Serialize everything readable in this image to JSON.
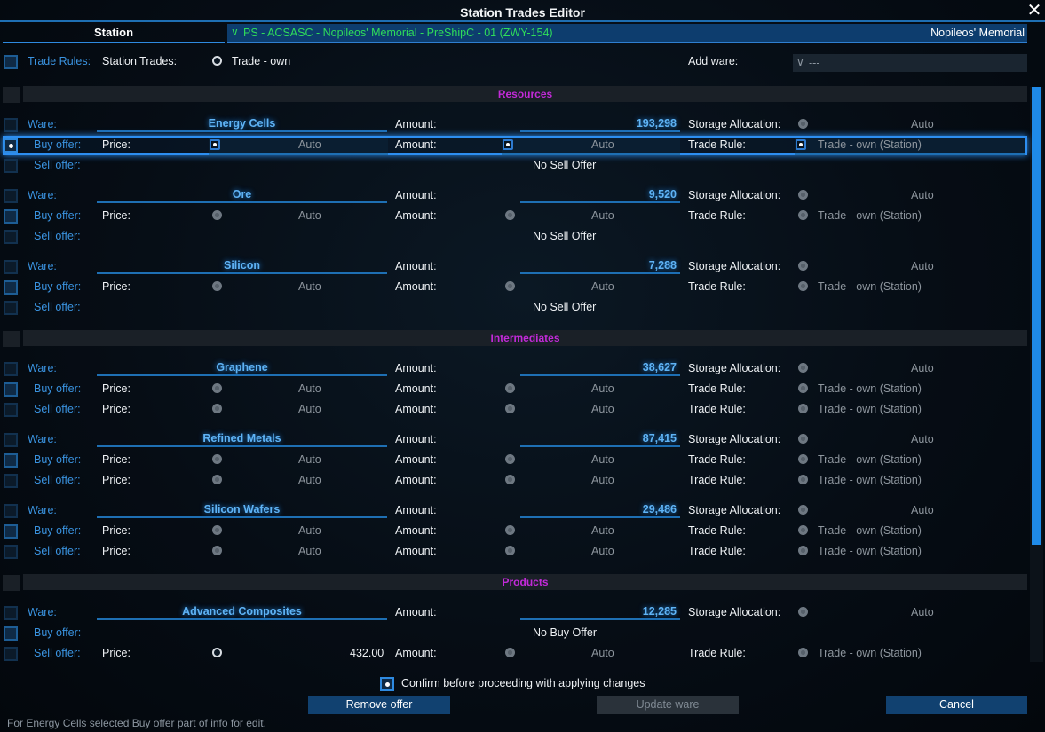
{
  "window": {
    "title": "Station Trades Editor",
    "close_icon": "close-icon"
  },
  "header": {
    "station_tab": "Station",
    "station_selected": "PS - ACSASC - Nopileos' Memorial - PreShipC - 01 (ZWY-154)",
    "station_name": "Nopileos' Memorial",
    "dropdown_glyph": "∨"
  },
  "toolbar": {
    "trade_rules_label": "Trade Rules:",
    "station_trades_label": "Station Trades:",
    "station_trades_value": "Trade - own",
    "add_ware_label": "Add ware:",
    "add_ware_value": "---"
  },
  "labels": {
    "ware": "Ware:",
    "buy_offer": "Buy offer:",
    "sell_offer": "Sell offer:",
    "price": "Price:",
    "amount": "Amount:",
    "storage_allocation": "Storage Allocation:",
    "trade_rule": "Trade Rule:",
    "auto": "Auto",
    "rule_value": "Trade - own (Station)",
    "no_sell": "No Sell Offer",
    "no_buy": "No Buy Offer"
  },
  "sections": {
    "resources": "Resources",
    "intermediates": "Intermediates",
    "products": "Products"
  },
  "wares": {
    "energy_cells": {
      "name": "Energy Cells",
      "amount": "193,298"
    },
    "ore": {
      "name": "Ore",
      "amount": "9,520"
    },
    "silicon": {
      "name": "Silicon",
      "amount": "7,288"
    },
    "graphene": {
      "name": "Graphene",
      "amount": "38,627"
    },
    "refined_metals": {
      "name": "Refined Metals",
      "amount": "87,415"
    },
    "silicon_wafers": {
      "name": "Silicon Wafers",
      "amount": "29,486"
    },
    "advanced_composites": {
      "name": "Advanced Composites",
      "amount": "12,285",
      "sell_price": "432.00"
    }
  },
  "confirm": {
    "label": "Confirm before proceeding with applying changes"
  },
  "buttons": {
    "remove": "Remove offer",
    "update": "Update ware",
    "cancel": "Cancel"
  },
  "footer": {
    "status": "For Energy Cells selected Buy offer part of info for edit."
  },
  "colors": {
    "accent": "#2e8ae0",
    "section_title": "#c22ad8",
    "ware_name": "#5fb3f5",
    "station_green": "#2fdc5a"
  }
}
